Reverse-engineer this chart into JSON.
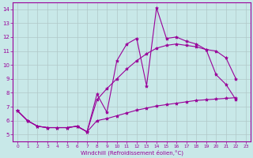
{
  "xlabel": "Windchill (Refroidissement éolien,°C)",
  "bg_color": "#c8e8e8",
  "grid_color": "#b0c8c8",
  "line_color": "#990099",
  "xlim": [
    -0.5,
    23.5
  ],
  "ylim": [
    4.5,
    14.5
  ],
  "xticks": [
    0,
    1,
    2,
    3,
    4,
    5,
    6,
    7,
    8,
    9,
    10,
    11,
    12,
    13,
    14,
    15,
    16,
    17,
    18,
    19,
    20,
    21,
    22,
    23
  ],
  "yticks": [
    5,
    6,
    7,
    8,
    9,
    10,
    11,
    12,
    13,
    14
  ],
  "series": [
    {
      "x": [
        0,
        1,
        2,
        3,
        4,
        5,
        6,
        7,
        8,
        9,
        10,
        11,
        12,
        13,
        14,
        15,
        16,
        17,
        18,
        19,
        20,
        21,
        22
      ],
      "y": [
        6.7,
        6.0,
        5.6,
        5.5,
        5.5,
        5.5,
        5.6,
        5.2,
        7.9,
        6.6,
        10.3,
        11.5,
        11.9,
        8.5,
        14.1,
        11.9,
        12.0,
        11.7,
        11.5,
        11.1,
        9.3,
        8.6,
        7.5
      ]
    },
    {
      "x": [
        0,
        1,
        2,
        3,
        4,
        5,
        6,
        7,
        8,
        9,
        10,
        11,
        12,
        13,
        14,
        15,
        16,
        17,
        18,
        19,
        20,
        21,
        22
      ],
      "y": [
        6.7,
        6.0,
        5.6,
        5.5,
        5.5,
        5.5,
        5.6,
        5.2,
        6.0,
        6.15,
        6.35,
        6.55,
        6.75,
        6.9,
        7.05,
        7.15,
        7.25,
        7.35,
        7.45,
        7.5,
        7.55,
        7.6,
        7.65
      ]
    },
    {
      "x": [
        0,
        1,
        2,
        3,
        4,
        5,
        6,
        7,
        8,
        9,
        10,
        11,
        12,
        13,
        14,
        15,
        16,
        17,
        18,
        19,
        20,
        21,
        22
      ],
      "y": [
        6.7,
        6.0,
        5.6,
        5.5,
        5.5,
        5.5,
        5.6,
        5.2,
        7.5,
        8.3,
        9.0,
        9.7,
        10.3,
        10.8,
        11.2,
        11.4,
        11.5,
        11.4,
        11.3,
        11.1,
        11.0,
        10.5,
        9.0
      ]
    }
  ]
}
